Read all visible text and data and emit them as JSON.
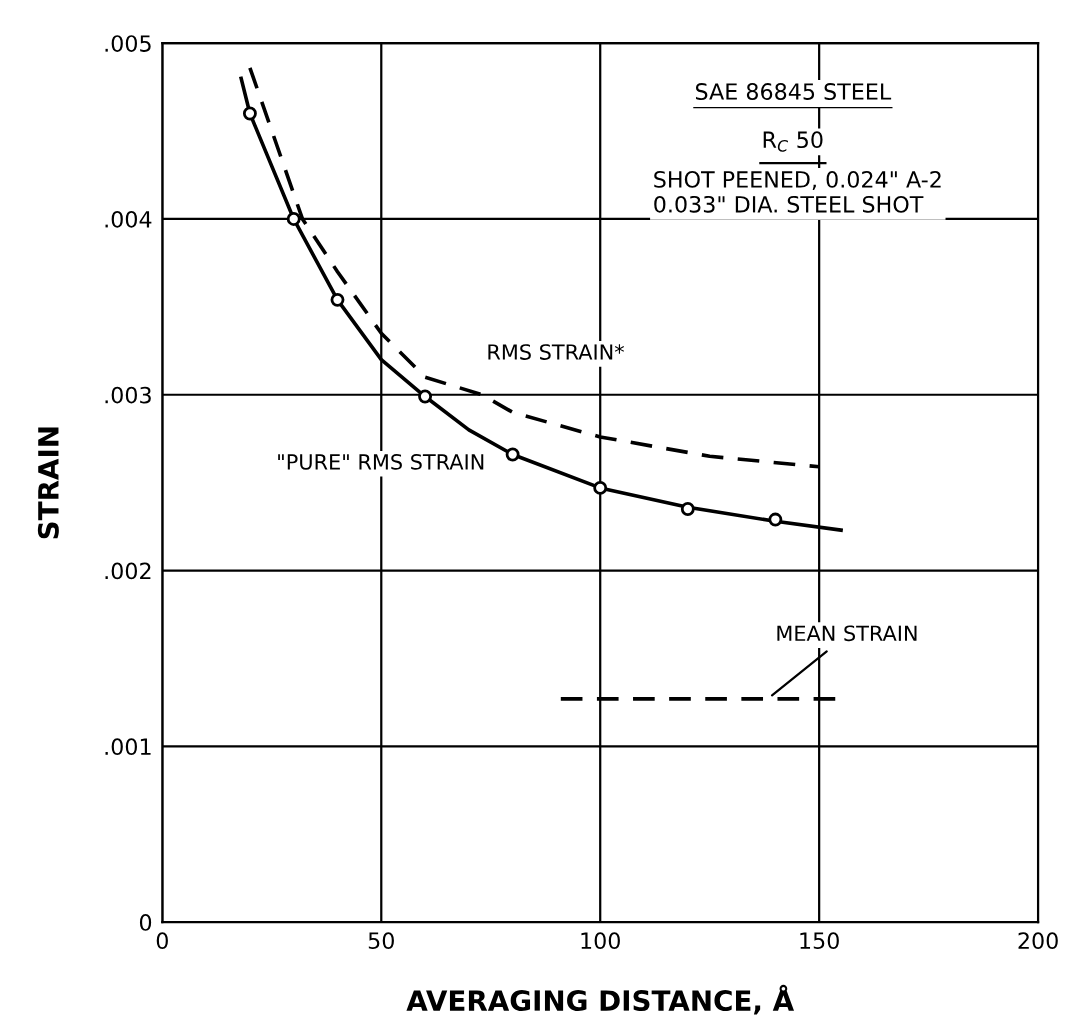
{
  "chart_data": {
    "type": "line",
    "xlabel": "AVERAGING DISTANCE, Å",
    "ylabel": "STRAIN",
    "xlim": [
      0,
      200
    ],
    "xticks": [
      0,
      50,
      100,
      150,
      200
    ],
    "ylim": [
      0,
      0.005
    ],
    "yticks": [
      0,
      {
        "value": 0.001,
        "label": ".001"
      },
      {
        "value": 0.002,
        "label": ".002"
      },
      {
        "value": 0.003,
        "label": ".003"
      },
      {
        "value": 0.004,
        "label": ".004"
      },
      {
        "value": 0.005,
        "label": ".005"
      }
    ],
    "grid": true,
    "series": [
      {
        "name": "RMS STRAIN*",
        "line_style": "dashed",
        "color": "#000000",
        "x": [
          20,
          32,
          40,
          50,
          60,
          73,
          80,
          100,
          125,
          150
        ],
        "values": [
          0.00486,
          0.004,
          0.0037,
          0.00335,
          0.0031,
          0.003,
          0.0029,
          0.00276,
          0.00265,
          0.00259
        ]
      },
      {
        "name": "\"PURE\" RMS STRAIN",
        "line_style": "solid",
        "color": "#000000",
        "x": [
          18,
          20,
          30,
          40,
          50,
          60,
          70,
          80,
          100,
          120,
          140,
          155
        ],
        "values": [
          0.0048,
          0.0046,
          0.004,
          0.00354,
          0.0032,
          0.00299,
          0.0028,
          0.00266,
          0.00247,
          0.00236,
          0.00228,
          0.00223
        ]
      },
      {
        "type": "scatter",
        "marker": "circle",
        "color": "#000000",
        "x": [
          20,
          30,
          40,
          60,
          80,
          100,
          120,
          140
        ],
        "values": [
          0.0046,
          0.004,
          0.00354,
          0.00299,
          0.00266,
          0.00247,
          0.00235,
          0.00229
        ]
      },
      {
        "name": "MEAN STRAIN",
        "line_style": "dashed",
        "color": "#000000",
        "x": [
          91,
          154
        ],
        "values": [
          0.00127,
          0.00127
        ]
      }
    ],
    "annotations": [
      "SAE 86845 STEEL",
      "R$_{C}$ 50",
      "SHOT PEENED, 0.024\" A-2\n0.033\" DIA. STEEL SHOT"
    ]
  }
}
